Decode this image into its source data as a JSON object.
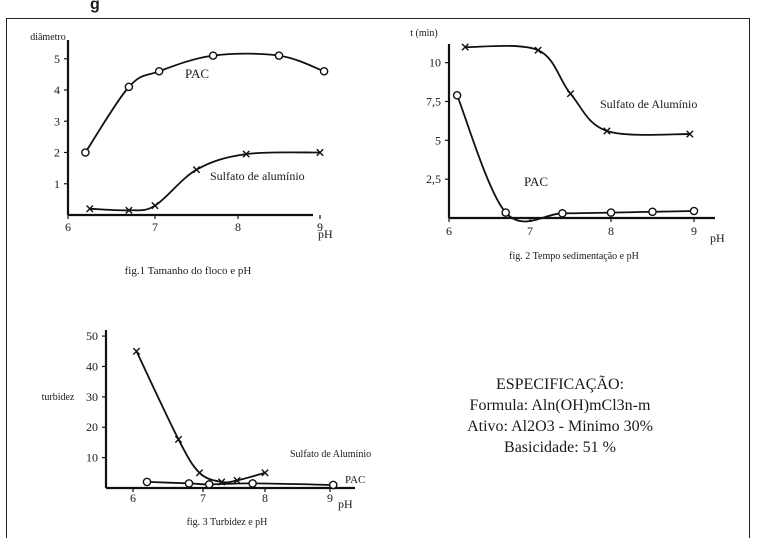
{
  "page": {
    "heading_fragment": "g"
  },
  "specification": {
    "title": "ESPECIFICAÇÃO:",
    "lines": [
      "Formula: Aln(OH)mCl3n-m",
      "Ativo: Al2O3 - Minimo 30%",
      "Basicidade: 51 %"
    ]
  },
  "chart_data": [
    {
      "type": "line",
      "title": "fig.1 Tamanho do floco e pH",
      "xlabel": "pH",
      "ylabel": "diâmetro",
      "xlim": [
        6,
        9.4
      ],
      "ylim": [
        0,
        5.6
      ],
      "xticks": [
        "6",
        "7",
        "8",
        "9"
      ],
      "yticks": [
        "1",
        "2",
        "3",
        "4",
        "5"
      ],
      "series": [
        {
          "name": "PAC",
          "marker": "o",
          "x": [
            6.2,
            6.7,
            7.05,
            7.7,
            8.5,
            9.05
          ],
          "y": [
            2.0,
            4.1,
            4.6,
            5.1,
            5.1,
            4.6
          ]
        },
        {
          "name": "Sulfato de alumínio",
          "marker": "x",
          "x": [
            6.25,
            6.7,
            7.0,
            7.5,
            8.1,
            9.0
          ],
          "y": [
            0.2,
            0.15,
            0.3,
            1.45,
            1.95,
            2.0
          ]
        }
      ],
      "grid": false,
      "legend": "inline labels"
    },
    {
      "type": "line",
      "title": "fig. 2 Tempo sedimentação e pH",
      "xlabel": "pH",
      "ylabel": "t (min)",
      "xlim": [
        6,
        9.4
      ],
      "ylim": [
        0,
        11.2
      ],
      "xticks": [
        "6",
        "7",
        "8",
        "9"
      ],
      "yticks": [
        "2,5",
        "5",
        "7,5",
        "10"
      ],
      "series": [
        {
          "name": "Sulfato de Alumínio",
          "marker": "x",
          "x": [
            6.2,
            7.1,
            7.5,
            7.95,
            8.95
          ],
          "y": [
            11.0,
            10.8,
            8.0,
            5.6,
            5.4
          ]
        },
        {
          "name": "PAC",
          "marker": "o",
          "x": [
            6.1,
            6.7,
            7.4,
            8.0,
            8.5,
            9.0
          ],
          "y": [
            7.9,
            0.35,
            0.3,
            0.35,
            0.4,
            0.45
          ]
        }
      ],
      "grid": false,
      "legend": "inline labels"
    },
    {
      "type": "line",
      "title": "fig. 3 Turbidez e pH",
      "xlabel": "pH",
      "ylabel": "turbidez",
      "xlim": [
        5.5,
        9.4
      ],
      "ylim": [
        0,
        52
      ],
      "xticks": [
        "6",
        "7",
        "8",
        "9"
      ],
      "yticks": [
        "10",
        "20",
        "30",
        "40",
        "50"
      ],
      "series": [
        {
          "name": "Sulfato de Alumínio",
          "marker": "x",
          "x": [
            6.05,
            6.65,
            6.95,
            7.3,
            7.55,
            8.0
          ],
          "y": [
            45.0,
            16.0,
            5.0,
            2.0,
            2.5,
            5.0
          ]
        },
        {
          "name": "PAC",
          "marker": "o",
          "x": [
            6.2,
            6.8,
            7.1,
            7.8,
            9.05
          ],
          "y": [
            2.0,
            1.5,
            1.2,
            1.5,
            1.0
          ]
        }
      ],
      "grid": false,
      "legend": "inline labels"
    }
  ]
}
